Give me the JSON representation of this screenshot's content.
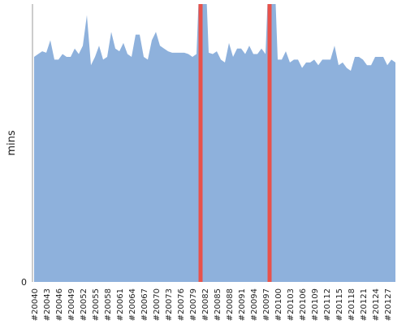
{
  "chart_data": {
    "type": "area",
    "y_label": "mins",
    "categories": [
      "#20040",
      null,
      null,
      "#20043",
      null,
      null,
      "#20046",
      null,
      null,
      "#20049",
      null,
      null,
      "#20052",
      null,
      null,
      "#20055",
      null,
      null,
      "#20058",
      null,
      null,
      "#20061",
      null,
      null,
      "#20064",
      null,
      null,
      "#20067",
      null,
      null,
      "#20070",
      null,
      null,
      "#20073",
      null,
      null,
      "#20076",
      null,
      null,
      "#20079",
      null,
      null,
      "#20082",
      null,
      null,
      "#20085",
      null,
      null,
      "#20088",
      null,
      null,
      "#20091",
      null,
      null,
      "#20094",
      null,
      null,
      "#20097",
      null,
      null,
      "#20100",
      null,
      null,
      "#20103",
      null,
      null,
      "#20106",
      null,
      null,
      "#20109",
      null,
      null,
      "#20112",
      null,
      null,
      "#20115",
      null,
      null,
      "#20118",
      null,
      null,
      "#20121",
      null,
      null,
      "#20124",
      null,
      null,
      "#20127",
      null,
      null
    ],
    "values": [
      81,
      82,
      83,
      82.5,
      87,
      80,
      80,
      82,
      81,
      81,
      84,
      82,
      85,
      96,
      78,
      81,
      85,
      80,
      81,
      90,
      84,
      83,
      86,
      82,
      81,
      89,
      89,
      81,
      80,
      87,
      90,
      85,
      84,
      83,
      82.5,
      82.5,
      82.5,
      82.5,
      82,
      81,
      82,
      120,
      120,
      82.5,
      82,
      83,
      80,
      79,
      86,
      81,
      84,
      84,
      82,
      85,
      82,
      82,
      84,
      82,
      120,
      120,
      80,
      80,
      83,
      79,
      80,
      80,
      77,
      79,
      79,
      80,
      78,
      80,
      80,
      80,
      85,
      78,
      79,
      77,
      76,
      81,
      81,
      80,
      78,
      78,
      81,
      81,
      81,
      78,
      80,
      79
    ],
    "color": "#8eb1dc",
    "highlights": [
      41,
      58
    ],
    "highlight_color": "#e8524b",
    "ylim": [
      0,
      100
    ],
    "yticks": [
      0
    ]
  }
}
